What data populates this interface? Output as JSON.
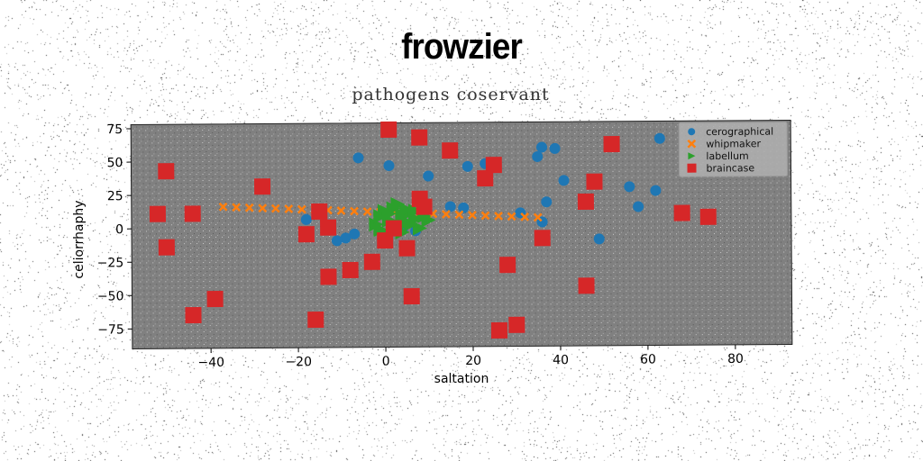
{
  "chart_data": {
    "type": "scatter",
    "suptitle": "frowzier",
    "title": "pathogens coservant",
    "xlabel": "saltation",
    "ylabel": "celiorrhaphy",
    "xlim": [
      -58,
      93
    ],
    "ylim": [
      -90,
      78
    ],
    "xticks": [
      -40,
      -20,
      0,
      20,
      40,
      60,
      80
    ],
    "yticks": [
      -75,
      -50,
      -25,
      0,
      25,
      50,
      75
    ],
    "legend_position": "top-right",
    "series": [
      {
        "name": "cerographical",
        "marker": "circle",
        "color": "#1f77b4",
        "points": [
          [
            -6,
            52
          ],
          [
            1,
            46
          ],
          [
            10,
            38
          ],
          [
            19,
            45
          ],
          [
            23,
            47
          ],
          [
            35,
            52
          ],
          [
            36,
            59
          ],
          [
            39,
            58
          ],
          [
            41,
            34
          ],
          [
            37,
            18
          ],
          [
            36,
            3
          ],
          [
            31,
            10
          ],
          [
            56,
            29
          ],
          [
            58,
            14
          ],
          [
            62,
            26
          ],
          [
            63,
            65
          ],
          [
            49,
            -10
          ],
          [
            -18,
            6
          ],
          [
            -9,
            -8
          ],
          [
            -7,
            -5
          ],
          [
            -11,
            -10
          ],
          [
            4,
            -2
          ],
          [
            7,
            -3
          ],
          [
            15,
            15
          ],
          [
            18,
            14
          ]
        ]
      },
      {
        "name": "whipmaker",
        "marker": "x",
        "color": "#ff7f0e",
        "points": [
          [
            -37,
            16
          ],
          [
            -34,
            15.6
          ],
          [
            -31,
            15.2
          ],
          [
            -28,
            14.8
          ],
          [
            -25,
            14.5
          ],
          [
            -22,
            14.1
          ],
          [
            -19,
            13.7
          ],
          [
            -16,
            13.3
          ],
          [
            -13,
            12.9
          ],
          [
            -10,
            12.5
          ],
          [
            -7,
            12.1
          ],
          [
            -4,
            11.7
          ],
          [
            -1,
            11.3
          ],
          [
            2,
            10.9
          ],
          [
            5,
            10.5
          ],
          [
            8,
            10.1
          ],
          [
            11,
            9.7
          ],
          [
            14,
            9.3
          ],
          [
            17,
            8.9
          ],
          [
            20,
            8.5
          ],
          [
            23,
            8.1
          ],
          [
            26,
            7.7
          ],
          [
            29,
            7.3
          ],
          [
            32,
            6.9
          ],
          [
            35,
            6.5
          ]
        ]
      },
      {
        "name": "labellum",
        "marker": "triangle-right",
        "color": "#2ca02c",
        "points": [
          [
            -2,
            2
          ],
          [
            -1,
            8
          ],
          [
            0,
            12
          ],
          [
            1,
            5
          ],
          [
            2,
            14
          ],
          [
            3,
            0
          ],
          [
            4,
            9
          ],
          [
            5,
            3
          ],
          [
            6,
            11
          ],
          [
            7,
            6
          ],
          [
            8,
            -1
          ],
          [
            -1,
            -2
          ],
          [
            0,
            -5
          ],
          [
            2,
            -3
          ],
          [
            4,
            -4
          ],
          [
            5,
            13
          ],
          [
            6,
            2
          ],
          [
            3,
            17
          ],
          [
            1,
            10
          ],
          [
            7,
            12
          ],
          [
            9,
            8
          ],
          [
            10,
            5
          ]
        ]
      },
      {
        "name": "braincase",
        "marker": "square",
        "color": "#d62728",
        "points": [
          [
            1,
            73
          ],
          [
            8,
            67
          ],
          [
            15,
            57
          ],
          [
            25,
            46
          ],
          [
            23,
            36
          ],
          [
            -50,
            43
          ],
          [
            -28,
            31
          ],
          [
            -52,
            11
          ],
          [
            -44,
            11
          ],
          [
            -15,
            12
          ],
          [
            -13,
            0
          ],
          [
            -18,
            -5
          ],
          [
            -50,
            -14
          ],
          [
            8,
            21
          ],
          [
            9,
            15
          ],
          [
            2,
            -1
          ],
          [
            0,
            -10
          ],
          [
            5,
            -16
          ],
          [
            -3,
            -26
          ],
          [
            -8,
            -32
          ],
          [
            -13,
            -37
          ],
          [
            6,
            -52
          ],
          [
            -39,
            -53
          ],
          [
            -44,
            -65
          ],
          [
            -16,
            -69
          ],
          [
            28,
            -29
          ],
          [
            26,
            -78
          ],
          [
            30,
            -74
          ],
          [
            36,
            -9
          ],
          [
            46,
            18
          ],
          [
            48,
            33
          ],
          [
            52,
            61
          ],
          [
            46,
            -45
          ],
          [
            68,
            9
          ],
          [
            74,
            6
          ]
        ]
      }
    ]
  }
}
